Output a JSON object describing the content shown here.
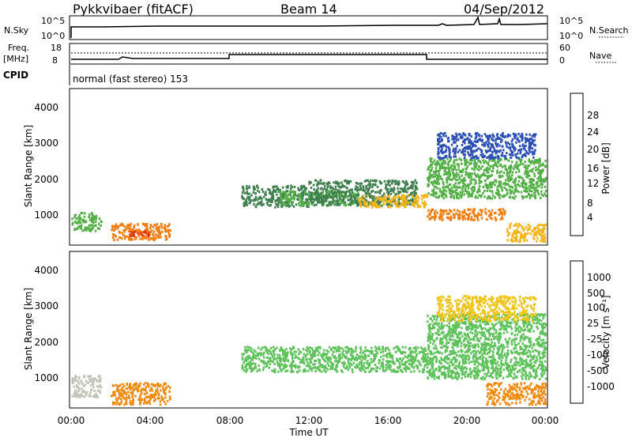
{
  "header": {
    "title": "Pykkvibaer (fitACF)",
    "beam": "Beam 14",
    "date": "04/Sep/2012"
  },
  "top_panels": {
    "nsky_label": "N.Sky",
    "nsky_ticks": [
      "10^5",
      "10^0"
    ],
    "nsearch_label": "N.Search",
    "nsearch_ticks": [
      "10^5",
      "10^0"
    ],
    "freq_label": "Freq.",
    "freq_unit": "[MHz]",
    "freq_ticks": [
      "18",
      "8"
    ],
    "nave_label": "Nave",
    "nave_ticks": [
      "60",
      "0"
    ],
    "cpid_label": "CPID",
    "cpid_text": "normal (fast stereo) 153"
  },
  "colors": {
    "power": [
      "#1a1aff",
      "#2b4fb5",
      "#3f7f4f",
      "#54b046",
      "#b7d633",
      "#f3b51b",
      "#f07d10",
      "#e03a0d",
      "#cc0000"
    ],
    "velocity": [
      "#1f2ec8",
      "#2d6fa3",
      "#3a8f6f",
      "#5ec25a",
      "#c3c3b8",
      "#f0c419",
      "#f08a10",
      "#ee5a0e",
      "#d41515"
    ]
  },
  "chart_data": [
    {
      "type": "heatmap",
      "name": "power",
      "ylabel": "Slant Range [km]",
      "ylim": [
        180,
        4500
      ],
      "yticks": [
        "1000",
        "2000",
        "3000",
        "4000"
      ],
      "xlim": [
        0,
        24
      ],
      "colorbar_label": "Power [dB]",
      "colorbar_ticks": [
        "4",
        "8",
        "12",
        "16",
        "20",
        "24",
        "28"
      ],
      "colorbar_range": [
        0,
        32
      ],
      "series": [
        {
          "t": [
            0.0,
            1.5
          ],
          "r": [
            600,
            1100
          ],
          "value": 14
        },
        {
          "t": [
            2.0,
            5.0
          ],
          "r": [
            350,
            800
          ],
          "value": 22
        },
        {
          "t": [
            2.8,
            4.0
          ],
          "r": [
            450,
            600
          ],
          "value": 28
        },
        {
          "t": [
            8.6,
            12.0
          ],
          "r": [
            1250,
            1850
          ],
          "value": 8
        },
        {
          "t": [
            10.5,
            14.5
          ],
          "r": [
            1300,
            1700
          ],
          "value": 14
        },
        {
          "t": [
            12.0,
            17.5
          ],
          "r": [
            1300,
            2000
          ],
          "value": 10
        },
        {
          "t": [
            14.5,
            18.0
          ],
          "r": [
            1250,
            1600
          ],
          "value": 20
        },
        {
          "t": [
            18.0,
            22.0
          ],
          "r": [
            900,
            1200
          ],
          "value": 24
        },
        {
          "t": [
            18.0,
            24.0
          ],
          "r": [
            1500,
            2600
          ],
          "value": 14
        },
        {
          "t": [
            18.5,
            23.5
          ],
          "r": [
            2600,
            3300
          ],
          "value": 6
        },
        {
          "t": [
            22.0,
            24.0
          ],
          "r": [
            300,
            800
          ],
          "value": 20
        }
      ]
    },
    {
      "type": "heatmap",
      "name": "velocity",
      "ylabel": "Slant Range [km]",
      "ylim": [
        180,
        4500
      ],
      "yticks": [
        "1000",
        "2000",
        "3000",
        "4000"
      ],
      "xlim": [
        0,
        24
      ],
      "xticks": [
        "00:00",
        "04:00",
        "08:00",
        "12:00",
        "16:00",
        "20:00",
        "00:00"
      ],
      "xlabel": "Time UT",
      "colorbar_label": "Velocity [m s⁻¹]",
      "colorbar_ticks": [
        "1000",
        "500",
        "100",
        "25",
        "-25",
        "-100",
        "-500",
        "-1000"
      ],
      "series": [
        {
          "t": [
            0.0,
            1.5
          ],
          "r": [
            500,
            1100
          ],
          "value": "-25"
        },
        {
          "t": [
            2.0,
            5.0
          ],
          "r": [
            300,
            900
          ],
          "value": "-500"
        },
        {
          "t": [
            8.6,
            18.0
          ],
          "r": [
            1200,
            1900
          ],
          "value": "25"
        },
        {
          "t": [
            18.0,
            24.0
          ],
          "r": [
            1000,
            2800
          ],
          "value": "25"
        },
        {
          "t": [
            18.5,
            23.5
          ],
          "r": [
            2600,
            3300
          ],
          "value": "-100"
        },
        {
          "t": [
            21.0,
            24.0
          ],
          "r": [
            300,
            900
          ],
          "value": "-500"
        }
      ]
    }
  ]
}
